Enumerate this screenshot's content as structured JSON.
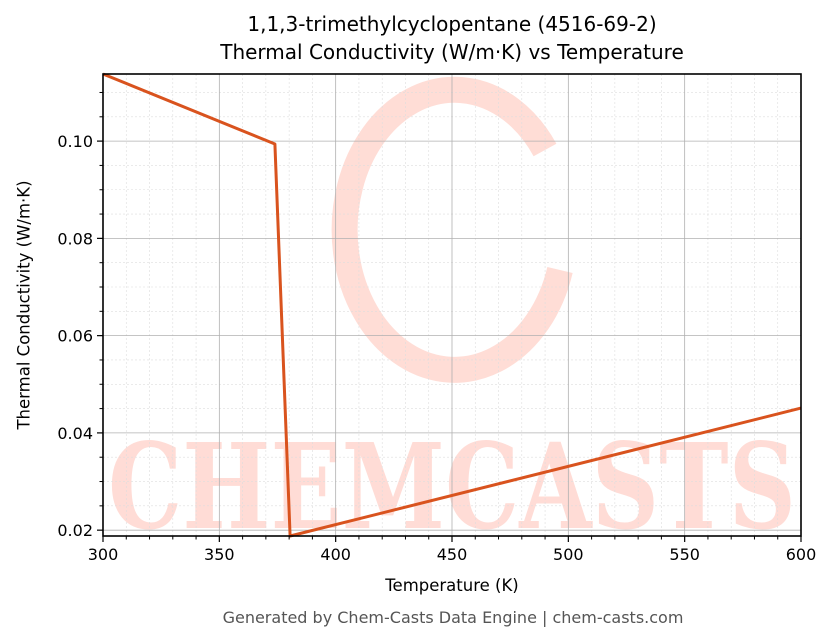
{
  "title_line1": "1,1,3-trimethylcyclopentane (4516-69-2)",
  "title_line2": "Thermal Conductivity (W/m·K) vs Temperature",
  "xlabel": "Temperature (K)",
  "ylabel": "Thermal Conductivity (W/m·K)",
  "footer": "Generated by Chem-Casts Data Engine | chem-casts.com",
  "watermark": "CHEMCASTS",
  "colors": {
    "line": "#d9531e",
    "watermark": "#ffd9d2",
    "grid_major": "#b0b0b0",
    "grid_minor": "#dddddd"
  },
  "chart_data": {
    "type": "line",
    "title": "1,1,3-trimethylcyclopentane (4516-69-2) Thermal Conductivity (W/m·K) vs Temperature",
    "xlabel": "Temperature (K)",
    "ylabel": "Thermal Conductivity (W/m·K)",
    "xlim": [
      300,
      600
    ],
    "ylim": [
      0.0188,
      0.1138
    ],
    "xticks": [
      300,
      350,
      400,
      450,
      500,
      550,
      600
    ],
    "yticks": [
      0.02,
      0.04,
      0.06,
      0.08,
      0.1
    ],
    "ytick_labels": [
      "0.02",
      "0.04",
      "0.06",
      "0.08",
      "0.10"
    ],
    "grid": true,
    "legend": null,
    "series": [
      {
        "name": "Thermal Conductivity",
        "x": [
          300,
          373.9,
          380.4,
          600
        ],
        "y": [
          0.1138,
          0.0994,
          0.0188,
          0.0451
        ]
      }
    ]
  }
}
